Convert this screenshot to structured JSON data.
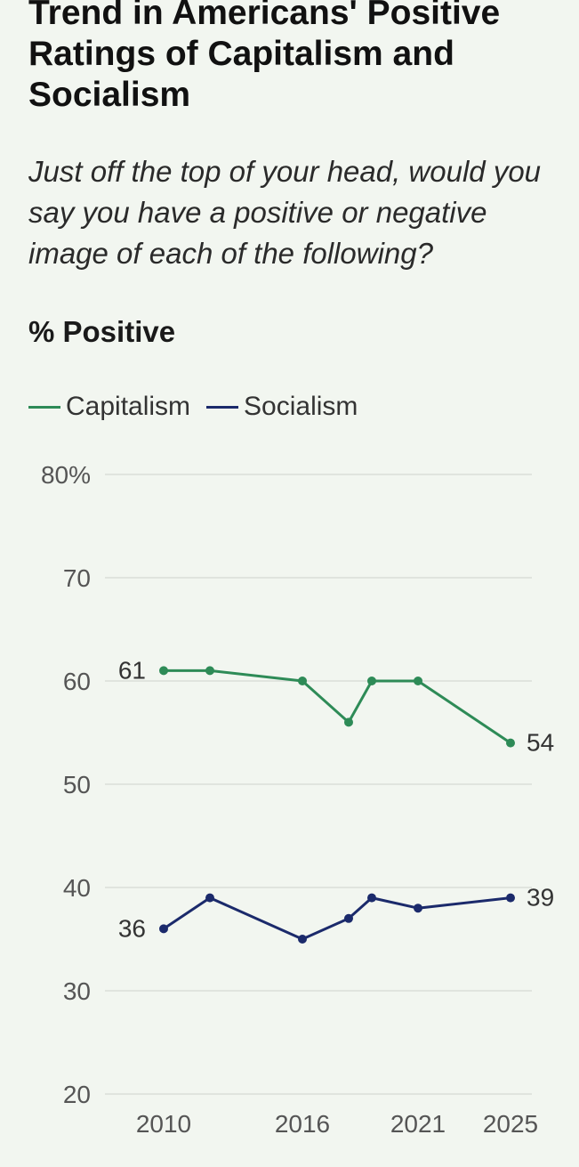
{
  "header": {
    "title": "Trend in Americans' Positive Ratings of Capitalism and Socialism",
    "subtitle": "Just off the top of your head, would you say you have a positive or negative image of each of the following?",
    "measure": "% Positive"
  },
  "colors": {
    "capitalism": "#2e8b57",
    "socialism": "#1b2a6b",
    "grid": "#d9ddd7",
    "background": "#f2f6f0"
  },
  "chart_data": {
    "type": "line",
    "title": "Trend in Americans' Positive Ratings of Capitalism and Socialism",
    "subtitle": "Just off the top of your head, would you say you have a positive or negative image of each of the following?",
    "ylabel": "% Positive",
    "xlabel": "",
    "ylim": [
      20,
      80
    ],
    "y_ticks": [
      20,
      30,
      40,
      50,
      60,
      70,
      80
    ],
    "y_tick_labels": [
      "20",
      "30",
      "40",
      "50",
      "60",
      "70",
      "80%"
    ],
    "xlim": [
      2010,
      2025
    ],
    "x_ticks": [
      2010,
      2016,
      2021,
      2025
    ],
    "x_tick_labels": [
      "2010",
      "2016",
      "2021",
      "2025"
    ],
    "grid": true,
    "legend_position": "top-left",
    "series": [
      {
        "name": "Capitalism",
        "color": "#2e8b57",
        "x": [
          2010,
          2012,
          2016,
          2018,
          2019,
          2021,
          2025
        ],
        "values": [
          61,
          61,
          60,
          56,
          60,
          60,
          54
        ],
        "start_label": "61",
        "end_label": "54"
      },
      {
        "name": "Socialism",
        "color": "#1b2a6b",
        "x": [
          2010,
          2012,
          2016,
          2018,
          2019,
          2021,
          2025
        ],
        "values": [
          36,
          39,
          35,
          37,
          39,
          38,
          39
        ],
        "start_label": "36",
        "end_label": "39"
      }
    ]
  }
}
